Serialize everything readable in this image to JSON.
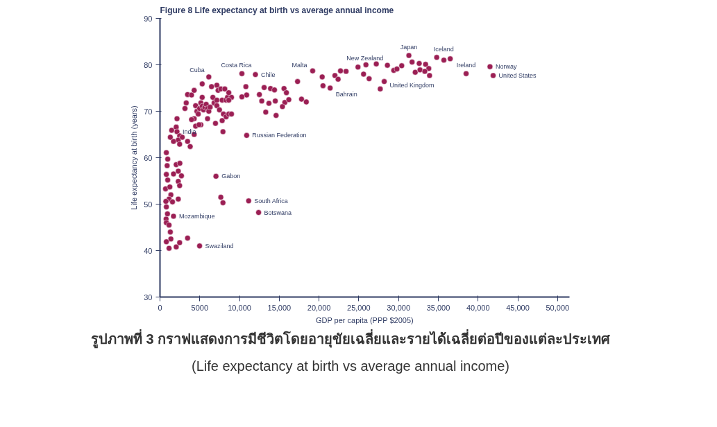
{
  "chart_data": {
    "type": "scatter",
    "title": "Figure 8 Life expectancy at birth vs average annual income",
    "xlabel": "GDP per capita (PPP $2005)",
    "ylabel": "Life expectancy at birth (years)",
    "marker": "circle",
    "grid": false,
    "xlim": [
      0,
      51500
    ],
    "ylim": [
      30,
      90
    ],
    "xticks": [
      0,
      5000,
      {
        "value": 10000,
        "label": "10,000"
      },
      {
        "value": 15000,
        "label": "15,000"
      },
      {
        "value": 20000,
        "label": "20,000"
      },
      {
        "value": 25000,
        "label": "25,000"
      },
      {
        "value": 30000,
        "label": "30,000"
      },
      {
        "value": 35000,
        "label": "35,000"
      },
      {
        "value": 40000,
        "label": "40,000"
      },
      {
        "value": 45000,
        "label": "45,000"
      },
      {
        "value": 50000,
        "label": "50,000"
      }
    ],
    "yticks": [
      30,
      40,
      50,
      60,
      70,
      80,
      90
    ],
    "series": [
      {
        "color": "#9b1f54",
        "x": [
          800,
          970,
          900,
          800,
          970,
          700,
          1240,
          1370,
          1140,
          1570,
          800,
          770,
          800,
          1140,
          1300,
          1370,
          800,
          1140,
          2040,
          2470,
          3470,
          4980,
          1700,
          2040,
          2500,
          2300,
          2700,
          2300,
          2470,
          1700,
          740,
          940,
          2300,
          1470,
          2040,
          2140,
          2470,
          2300,
          1700,
          1300,
          2470,
          2800,
          3470,
          3800,
          4300,
          4480,
          2140,
          3140,
          3300,
          3470,
          3970,
          4300,
          4480,
          4640,
          4810,
          4980,
          5140,
          5310,
          5480,
          5640,
          5810,
          5980,
          6140,
          6310,
          5310,
          5310,
          6140,
          6480,
          6650,
          6810,
          7150,
          7150,
          7310,
          7650,
          7150,
          7480,
          7820,
          7980,
          8320,
          8490,
          7820,
          8320,
          8650,
          8990,
          8150,
          8650,
          8990,
          7920,
          5980,
          5140,
          4910,
          6980,
          4300,
          3970,
          8650,
          10900,
          7040,
          7650,
          7920,
          11150,
          12400,
          10300,
          12000,
          10800,
          10900,
          10300,
          13100,
          13900,
          14400,
          15600,
          15900,
          12500,
          12800,
          13700,
          14500,
          15700,
          16200,
          15400,
          13300,
          14600,
          17300,
          17800,
          18400,
          19200,
          20400,
          20500,
          21400,
          22000,
          22400,
          22700,
          23400,
          24900,
          25900,
          25600,
          26300,
          27200,
          28600,
          28200,
          27700,
          29400,
          29800,
          30400,
          31300,
          31700,
          32600,
          33400,
          33800,
          32100,
          32700,
          33300,
          33900,
          34800,
          35700,
          36500,
          38500,
          41500,
          41900
        ],
        "values": [
          61.1,
          59.7,
          58.3,
          56.4,
          55.2,
          53.3,
          53.7,
          52.0,
          51.1,
          50.5,
          49.4,
          46.8,
          46.0,
          45.5,
          44.0,
          42.5,
          41.9,
          40.5,
          40.8,
          41.7,
          42.7,
          41.0,
          56.5,
          58.5,
          58.8,
          57.1,
          56.1,
          54.9,
          54.0,
          47.4,
          50.6,
          47.9,
          51.1,
          65.9,
          66.6,
          65.6,
          64.7,
          63.8,
          63.5,
          64.4,
          62.9,
          64.4,
          63.5,
          62.4,
          65.0,
          66.8,
          68.4,
          70.6,
          71.8,
          73.6,
          73.5,
          74.5,
          71.2,
          70.0,
          69.4,
          70.6,
          71.8,
          71.1,
          70.3,
          70.9,
          71.5,
          70.6,
          70.0,
          70.9,
          73.0,
          75.9,
          77.4,
          75.3,
          73.0,
          71.8,
          72.4,
          75.6,
          74.5,
          74.8,
          71.2,
          70.3,
          72.4,
          69.4,
          72.4,
          73.0,
          68.0,
          68.8,
          69.4,
          73.0,
          74.8,
          72.4,
          69.4,
          65.6,
          68.4,
          67.1,
          67.1,
          67.4,
          68.4,
          68.2,
          74.0,
          64.8,
          56.0,
          51.5,
          50.3,
          50.7,
          48.2,
          78.1,
          77.9,
          75.3,
          73.5,
          73.1,
          75.1,
          74.9,
          74.6,
          74.9,
          74.0,
          73.6,
          72.2,
          71.7,
          72.2,
          71.9,
          72.5,
          71.0,
          69.8,
          69.1,
          76.4,
          72.6,
          72.0,
          78.7,
          77.4,
          75.5,
          75.0,
          77.7,
          76.9,
          78.7,
          78.6,
          79.5,
          80.0,
          78.0,
          77.0,
          80.2,
          79.9,
          76.4,
          74.8,
          78.8,
          79.1,
          79.8,
          82.0,
          80.6,
          80.3,
          80.1,
          79.2,
          78.4,
          78.9,
          78.6,
          77.7,
          81.6,
          81.0,
          81.3,
          78.1,
          79.6,
          77.7
        ]
      }
    ],
    "annotations": [
      {
        "text": "Costa Rica",
        "x": 10300,
        "y": 78.1
      },
      {
        "text": "Chile",
        "x": 12000,
        "y": 77.9
      },
      {
        "text": "Cuba",
        "x": 6140,
        "y": 77.4
      },
      {
        "text": "India",
        "x": 2140,
        "y": 65.6
      },
      {
        "text": "Russian Federation",
        "x": 10900,
        "y": 64.8
      },
      {
        "text": "Gabon",
        "x": 7040,
        "y": 56.0
      },
      {
        "text": "South Africa",
        "x": 11150,
        "y": 50.7
      },
      {
        "text": "Botswana",
        "x": 12400,
        "y": 48.2
      },
      {
        "text": "Mozambique",
        "x": 1700,
        "y": 47.4
      },
      {
        "text": "Swaziland",
        "x": 4980,
        "y": 41.0
      },
      {
        "text": "Malta",
        "x": 19200,
        "y": 78.7
      },
      {
        "text": "Bahrain",
        "x": 21400,
        "y": 75.0
      },
      {
        "text": "New Zealand",
        "x": 24900,
        "y": 79.5
      },
      {
        "text": "Japan",
        "x": 31300,
        "y": 82.0
      },
      {
        "text": "Iceland",
        "x": 34800,
        "y": 81.6
      },
      {
        "text": "United Kingdom",
        "x": 28200,
        "y": 76.4
      },
      {
        "text": "Ireland",
        "x": 38500,
        "y": 78.1
      },
      {
        "text": "Norway",
        "x": 41500,
        "y": 79.6
      },
      {
        "text": "United States",
        "x": 41900,
        "y": 77.7
      },
      "รูปภาพที่ 3 กราฟแสดงการมีชีวิตโดยอายุขัยเฉลี่ยและรายได้เฉลี่ยต่อปีของแต่ละประเทศ",
      "(Life expectancy at birth vs average annual income)"
    ]
  }
}
